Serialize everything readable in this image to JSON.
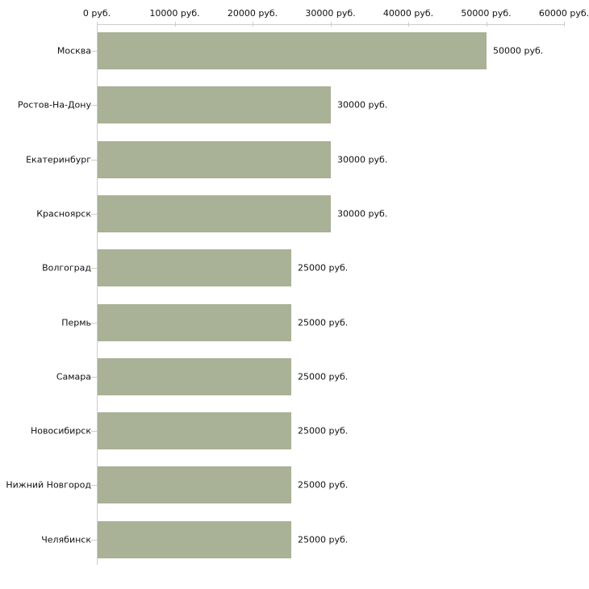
{
  "chart_data": {
    "type": "bar",
    "orientation": "horizontal",
    "title": "",
    "categories": [
      "Москва",
      "Ростов-На-Дону",
      "Екатеринбург",
      "Красноярск",
      "Волгоград",
      "Пермь",
      "Самара",
      "Новосибирск",
      "Нижний Новгород",
      "Челябинск"
    ],
    "values": [
      50000,
      30000,
      30000,
      30000,
      25000,
      25000,
      25000,
      25000,
      25000,
      25000
    ],
    "value_labels": [
      "50000 руб.",
      "30000 руб.",
      "30000 руб.",
      "30000 руб.",
      "25000 руб.",
      "25000 руб.",
      "25000 руб.",
      "25000 руб.",
      "25000 руб.",
      "25000 руб."
    ],
    "x_axis": {
      "position": "top",
      "range": [
        0,
        60000
      ],
      "tick_values": [
        0,
        10000,
        20000,
        30000,
        40000,
        50000,
        60000
      ],
      "tick_labels": [
        "0 руб.",
        "10000 руб.",
        "20000 руб.",
        "30000 руб.",
        "40000 руб.",
        "50000 руб.",
        "60000 руб."
      ]
    },
    "legend": "none",
    "grid": "off",
    "colors": {
      "bar": "#a9b196",
      "axis_line": "#cccccc",
      "tick_mark": "#ccd3b3",
      "text": "#111111",
      "background": "#ffffff"
    }
  }
}
